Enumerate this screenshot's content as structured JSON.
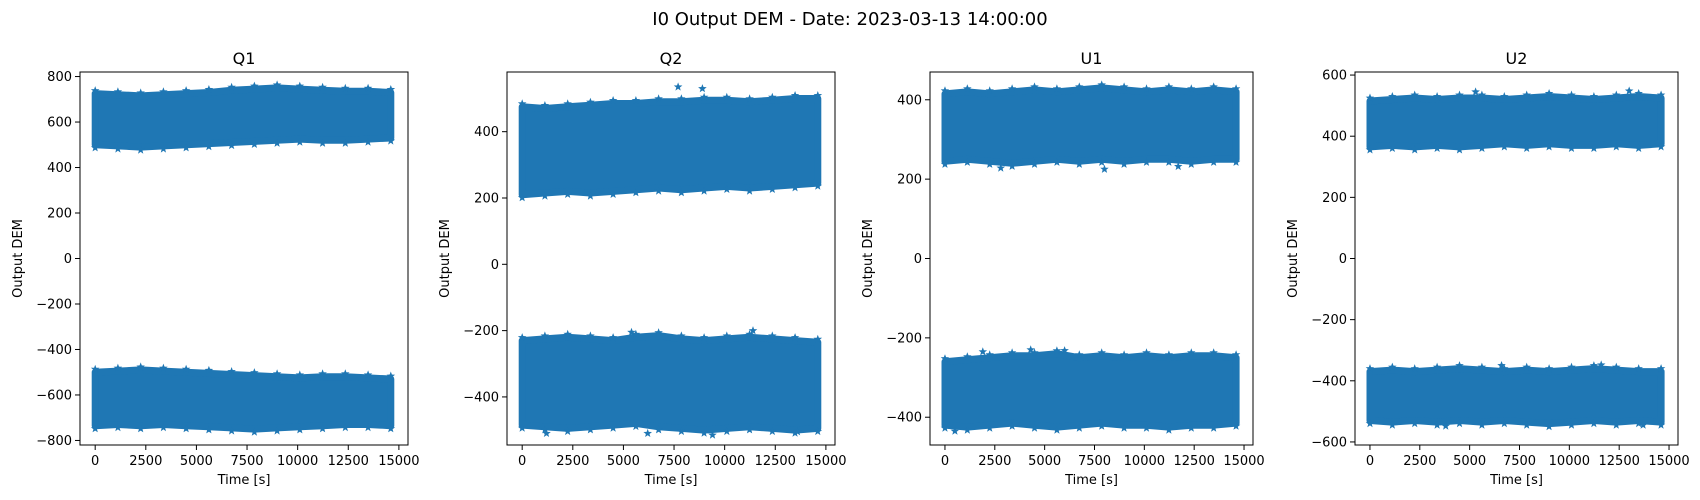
{
  "figure": {
    "title": "I0 Output DEM - Date: 2023-03-13 14:00:00"
  },
  "colors": {
    "series": "#1f77b4",
    "axes": "#000000",
    "background": "#ffffff"
  },
  "chart_data": [
    {
      "type": "scatter",
      "marker": "star",
      "title": "Q1",
      "xlabel": "Time [s]",
      "ylabel": "Output DEM",
      "xlim": [
        -750,
        15450
      ],
      "ylim": [
        -820,
        820
      ],
      "xticks": [
        0,
        2500,
        5000,
        7500,
        10000,
        12500,
        15000
      ],
      "yticks": [
        -800,
        -600,
        -400,
        -200,
        0,
        200,
        400,
        600,
        800
      ],
      "x_range": [
        0,
        14600
      ],
      "bands": [
        {
          "lower": [
            500,
            495,
            490,
            495,
            500,
            505,
            510,
            515,
            520,
            525,
            520,
            520,
            525,
            530
          ],
          "upper": [
            725,
            720,
            715,
            720,
            725,
            730,
            740,
            745,
            750,
            745,
            740,
            735,
            735,
            730
          ]
        },
        {
          "lower": [
            -735,
            -730,
            -735,
            -730,
            -735,
            -740,
            -745,
            -750,
            -745,
            -740,
            -735,
            -730,
            -730,
            -735
          ],
          "upper": [
            -500,
            -495,
            -490,
            -495,
            -500,
            -505,
            -510,
            -515,
            -520,
            -525,
            -520,
            -520,
            -525,
            -530
          ]
        }
      ],
      "outliers": []
    },
    {
      "type": "scatter",
      "marker": "star",
      "title": "Q2",
      "xlabel": "Time [s]",
      "ylabel": "Output DEM",
      "xlim": [
        -750,
        15450
      ],
      "ylim": [
        -545,
        580
      ],
      "xticks": [
        0,
        2500,
        5000,
        7500,
        10000,
        12500,
        15000
      ],
      "yticks": [
        -400,
        -200,
        0,
        200,
        400
      ],
      "x_range": [
        0,
        14600
      ],
      "bands": [
        {
          "lower": [
            210,
            215,
            220,
            215,
            220,
            225,
            230,
            225,
            230,
            235,
            230,
            235,
            240,
            245
          ],
          "upper": [
            475,
            470,
            475,
            480,
            485,
            485,
            490,
            490,
            495,
            495,
            490,
            495,
            500,
            500
          ]
        },
        {
          "lower": [
            -485,
            -490,
            -495,
            -490,
            -485,
            -480,
            -490,
            -495,
            -500,
            -495,
            -490,
            -495,
            -500,
            -495
          ],
          "upper": [
            -230,
            -225,
            -220,
            -225,
            -230,
            -220,
            -215,
            -225,
            -230,
            -225,
            -220,
            -225,
            -230,
            -235
          ]
        }
      ],
      "outliers": [
        [
          7700,
          535
        ],
        [
          8900,
          530
        ],
        [
          5400,
          -205
        ],
        [
          11400,
          -200
        ],
        [
          1200,
          -510
        ],
        [
          9400,
          -515
        ],
        [
          13600,
          -505
        ],
        [
          6200,
          -510
        ]
      ]
    },
    {
      "type": "scatter",
      "marker": "star",
      "title": "U1",
      "xlabel": "Time [s]",
      "ylabel": "Output DEM",
      "xlim": [
        -750,
        15450
      ],
      "ylim": [
        -470,
        470
      ],
      "xticks": [
        0,
        2500,
        5000,
        7500,
        10000,
        12500,
        15000
      ],
      "yticks": [
        -400,
        -200,
        0,
        200,
        400
      ],
      "x_range": [
        0,
        14600
      ],
      "bands": [
        {
          "lower": [
            245,
            250,
            245,
            240,
            245,
            250,
            245,
            250,
            245,
            250,
            250,
            245,
            250,
            250
          ],
          "upper": [
            415,
            420,
            415,
            420,
            425,
            420,
            425,
            430,
            425,
            420,
            425,
            420,
            425,
            420
          ]
        },
        {
          "lower": [
            -420,
            -425,
            -420,
            -415,
            -420,
            -425,
            -420,
            -415,
            -420,
            -420,
            -425,
            -420,
            -420,
            -415
          ],
          "upper": [
            -260,
            -255,
            -250,
            -245,
            -245,
            -240,
            -250,
            -245,
            -250,
            -245,
            -250,
            -245,
            -245,
            -250
          ]
        }
      ],
      "outliers": [
        [
          2800,
          228
        ],
        [
          8000,
          225
        ],
        [
          11700,
          232
        ],
        [
          500,
          -435
        ],
        [
          4300,
          -230
        ],
        [
          6000,
          -232
        ],
        [
          1900,
          -235
        ]
      ]
    },
    {
      "type": "scatter",
      "marker": "star",
      "title": "U2",
      "xlabel": "Time [s]",
      "ylabel": "Output DEM",
      "xlim": [
        -750,
        15450
      ],
      "ylim": [
        -610,
        610
      ],
      "xticks": [
        0,
        2500,
        5000,
        7500,
        10000,
        12500,
        15000
      ],
      "yticks": [
        -600,
        -400,
        -200,
        0,
        200,
        400,
        600
      ],
      "x_range": [
        0,
        14600
      ],
      "bands": [
        {
          "lower": [
            365,
            370,
            365,
            370,
            365,
            370,
            375,
            370,
            375,
            370,
            370,
            375,
            370,
            375
          ],
          "upper": [
            515,
            520,
            525,
            520,
            525,
            525,
            520,
            525,
            530,
            525,
            520,
            525,
            530,
            525
          ]
        },
        {
          "lower": [
            -530,
            -535,
            -530,
            -535,
            -530,
            -535,
            -530,
            -535,
            -540,
            -535,
            -530,
            -535,
            -530,
            -535
          ],
          "upper": [
            -370,
            -365,
            -370,
            -365,
            -360,
            -365,
            -370,
            -365,
            -370,
            -365,
            -360,
            -365,
            -370,
            -370
          ]
        }
      ],
      "outliers": [
        [
          5300,
          545
        ],
        [
          13000,
          548
        ],
        [
          6600,
          -350
        ],
        [
          11600,
          -348
        ],
        [
          3800,
          -548
        ],
        [
          13700,
          -545
        ]
      ]
    }
  ]
}
